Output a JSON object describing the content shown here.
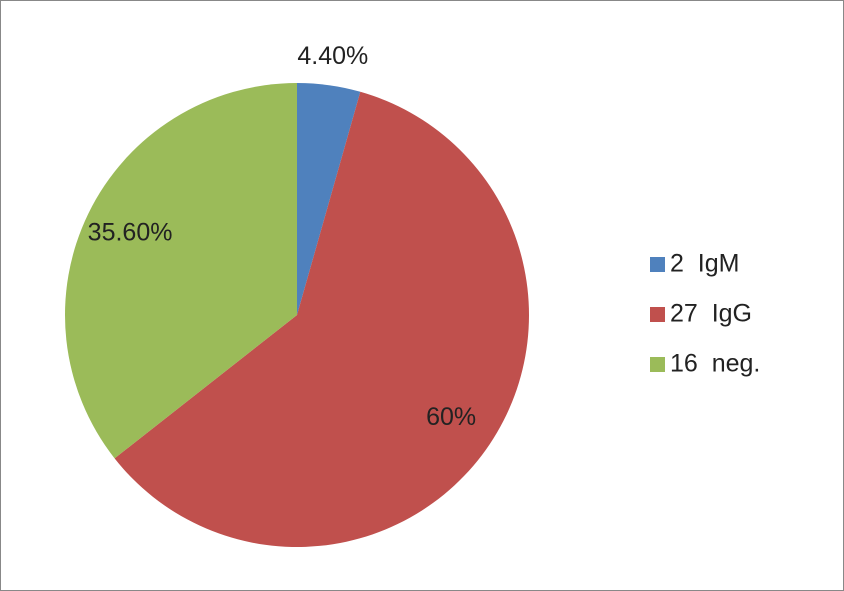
{
  "chart_data": {
    "type": "pie",
    "categories": [
      "2  IgM",
      "27  IgG",
      "16  neg."
    ],
    "values": [
      4.4,
      60,
      35.6
    ],
    "value_labels": [
      "4.40%",
      "60%",
      "35.60%"
    ],
    "colors": [
      "#4f81bd",
      "#c0504d",
      "#9bbb59"
    ],
    "legend": "right"
  }
}
